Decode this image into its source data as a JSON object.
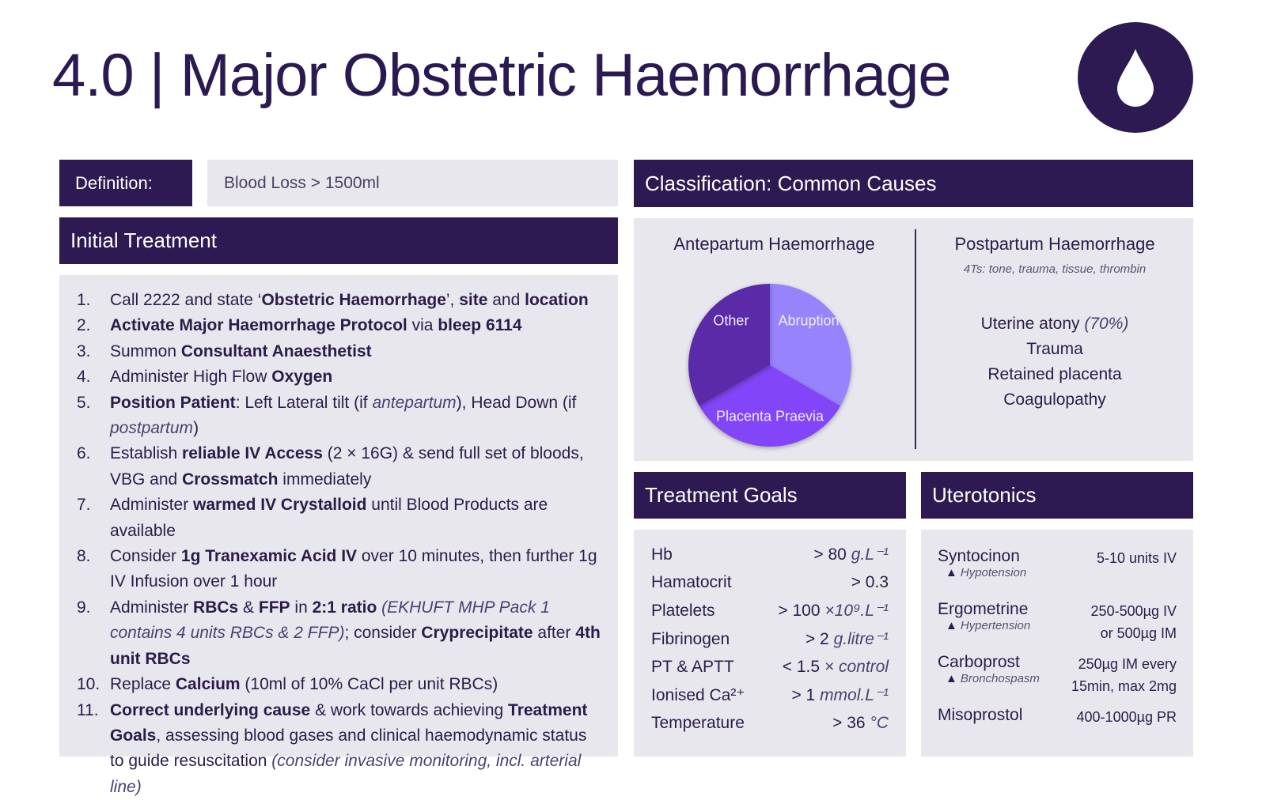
{
  "header": {
    "title": "4.0 | Major Obstetric Haemorrhage",
    "icon": "blood-drop-icon",
    "color": "#2e1a52"
  },
  "definition": {
    "label": "Definition:",
    "value": "Blood Loss > 1500ml"
  },
  "initial_treatment": {
    "title": "Initial Treatment",
    "items": [
      {
        "n": "1.",
        "seg": [
          [
            "",
            "Call 2222 and state ‘"
          ],
          [
            "b",
            "Obstetric Haemorrhage"
          ],
          [
            "",
            "’, "
          ],
          [
            "b",
            "site"
          ],
          [
            "",
            " and "
          ],
          [
            "b",
            "location"
          ]
        ]
      },
      {
        "n": "2.",
        "seg": [
          [
            "b",
            "Activate Major Haemorrhage Protocol"
          ],
          [
            "",
            " via "
          ],
          [
            "b",
            "bleep 6114"
          ]
        ]
      },
      {
        "n": "3.",
        "seg": [
          [
            "",
            "Summon "
          ],
          [
            "b",
            "Consultant Anaesthetist"
          ]
        ]
      },
      {
        "n": "4.",
        "seg": [
          [
            "",
            "Administer High Flow "
          ],
          [
            "b",
            "Oxygen"
          ]
        ]
      },
      {
        "n": "5.",
        "seg": [
          [
            "b",
            "Position Patient"
          ],
          [
            "",
            ": Left Lateral tilt (if "
          ],
          [
            "i",
            "antepartum"
          ],
          [
            "",
            "), Head Down (if "
          ],
          [
            "i",
            "postpartum"
          ],
          [
            "",
            ")"
          ]
        ]
      },
      {
        "n": "6.",
        "seg": [
          [
            "",
            "Establish "
          ],
          [
            "b",
            "reliable IV Access"
          ],
          [
            "",
            " (2 × 16G) & send full set of bloods, VBG and "
          ],
          [
            "b",
            "Crossmatch"
          ],
          [
            "",
            " immediately"
          ]
        ]
      },
      {
        "n": "7.",
        "seg": [
          [
            "",
            "Administer "
          ],
          [
            "b",
            "warmed IV Crystalloid"
          ],
          [
            "",
            " until Blood Products are available"
          ]
        ]
      },
      {
        "n": "8.",
        "seg": [
          [
            "",
            "Consider "
          ],
          [
            "b",
            "1g Tranexamic Acid IV"
          ],
          [
            "",
            " over 10 minutes, then further 1g IV Infusion over 1 hour"
          ]
        ]
      },
      {
        "n": "9.",
        "seg": [
          [
            "",
            "Administer "
          ],
          [
            "b",
            "RBCs"
          ],
          [
            "",
            " & "
          ],
          [
            "b",
            "FFP"
          ],
          [
            "",
            " in "
          ],
          [
            "b",
            "2:1 ratio"
          ],
          [
            "i",
            " (EKHUFT MHP Pack 1 contains 4 units RBCs & 2 FFP)"
          ],
          [
            "",
            "; consider "
          ],
          [
            "b",
            "Cryprecipitate"
          ],
          [
            "",
            " after "
          ],
          [
            "b",
            "4th unit RBCs"
          ]
        ]
      },
      {
        "n": "10.",
        "seg": [
          [
            "",
            "Replace "
          ],
          [
            "b",
            "Calcium"
          ],
          [
            "",
            " (10ml of 10% CaCl per unit RBCs)"
          ]
        ]
      },
      {
        "n": "11.",
        "seg": [
          [
            "b",
            "Correct underlying cause"
          ],
          [
            "",
            " & work towards achieving "
          ],
          [
            "b",
            "Treatment Goals"
          ],
          [
            "",
            ", assessing blood gases and clinical haemodynamic status to guide resuscitation "
          ],
          [
            "i",
            "(consider invasive monitoring, incl. arterial line)"
          ]
        ]
      }
    ]
  },
  "classification": {
    "title": "Classification: Common Causes",
    "antepartum": {
      "title": "Antepartum Haemorrhage"
    },
    "postpartum": {
      "title": "Postpartum  Haemorrhage",
      "subtitle": "4Ts: tone, trauma, tissue, thrombin",
      "causes": [
        "Uterine atony",
        "Trauma",
        "Retained placenta",
        "Coagulopathy"
      ],
      "atony_pct": "(70%)"
    }
  },
  "chart_data": {
    "type": "pie",
    "categories": [
      "Abruption",
      "Placenta Praevia",
      "Other"
    ],
    "values": [
      1,
      1,
      1
    ],
    "colors": [
      "#9783fc",
      "#8245f8",
      "#5a2ca8"
    ]
  },
  "treatment_goals": {
    "title": "Treatment Goals",
    "rows": [
      {
        "k": "Hb",
        "v": "> 80",
        "u": "g.L⁻¹"
      },
      {
        "k": "Hamatocrit",
        "v": "> 0.3",
        "u": ""
      },
      {
        "k": "Platelets",
        "v": "> 100",
        "u": "×10⁹.L⁻¹"
      },
      {
        "k": "Fibrinogen",
        "v": "> 2",
        "u": "g.litre⁻¹"
      },
      {
        "k": "PT & APTT",
        "v": "< 1.5",
        "u": "× control"
      },
      {
        "k": "Ionised Ca²⁺",
        "v": "> 1",
        "u": "mmol.L⁻¹"
      },
      {
        "k": "Temperature",
        "v": "> 36",
        "u": "°C"
      }
    ]
  },
  "uterotonics": {
    "title": "Uterotonics",
    "rows": [
      {
        "drug": "Syntocinon",
        "warn": "Hypotension",
        "dose": [
          "5-10 units IV"
        ]
      },
      {
        "drug": "Ergometrine",
        "warn": "Hypertension",
        "dose": [
          "250-500µg IV",
          "or 500µg IM"
        ]
      },
      {
        "drug": "Carboprost",
        "warn": "Bronchospasm",
        "dose": [
          "250µg IM every",
          "15min, max 2mg"
        ]
      },
      {
        "drug": "Misoprostol",
        "warn": "",
        "dose": [
          "400-1000µg PR"
        ]
      }
    ]
  }
}
